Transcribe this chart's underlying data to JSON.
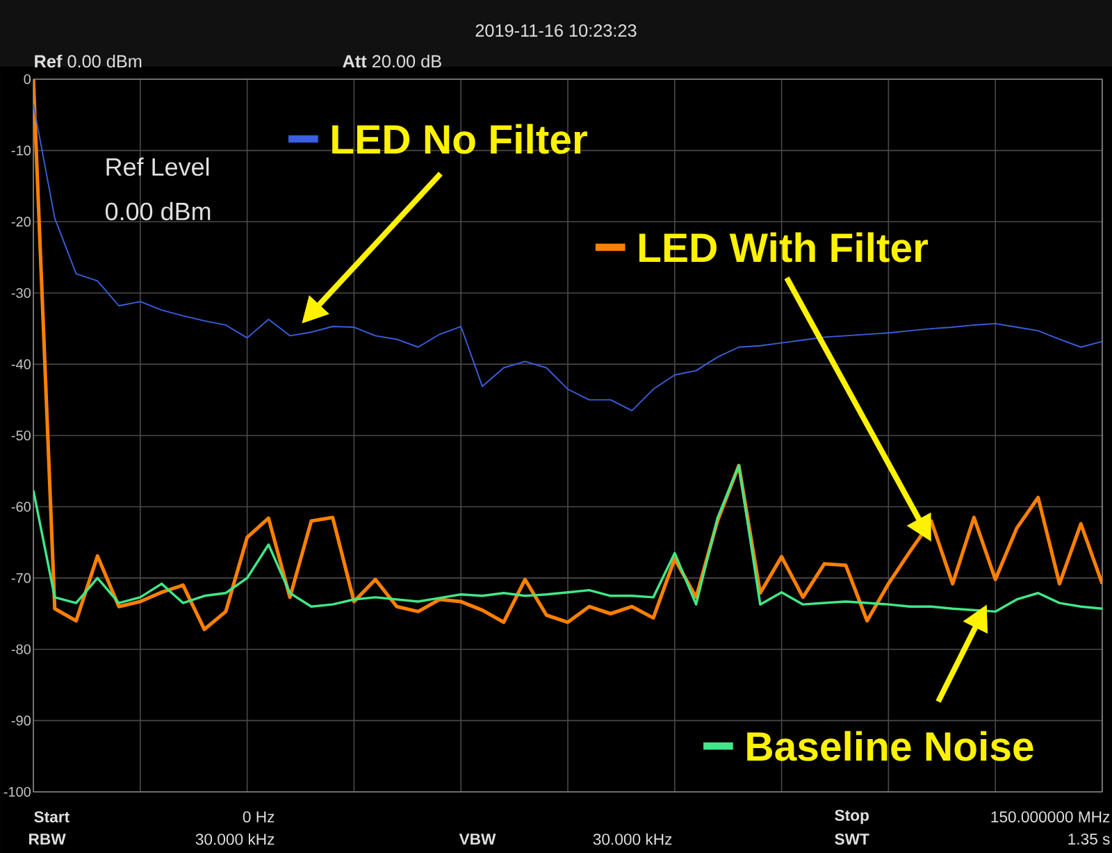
{
  "chart_data": {
    "type": "line",
    "ylim": [
      -100,
      0
    ],
    "categories": [
      null,
      null,
      null,
      null,
      null,
      null,
      null,
      null,
      null,
      null,
      null,
      null,
      null,
      null,
      null,
      null,
      null,
      null,
      null,
      null,
      null,
      null,
      null,
      null,
      null,
      null,
      null,
      null,
      null,
      null,
      null,
      null,
      null,
      null,
      null,
      null,
      null,
      null,
      null,
      null,
      null,
      null,
      null,
      null,
      null,
      null,
      null,
      null,
      null,
      null,
      null
    ],
    "yticks": [
      0,
      -10,
      -20,
      -30,
      -40,
      -50,
      -60,
      -70,
      -80,
      -90,
      -100
    ],
    "tick_labels": "y",
    "grid": true,
    "legend": "right",
    "annotations": [
      "2019-11-16   10:23:23",
      "**Ref**  0.00 dBm",
      "**Att**  20.00 dB",
      "Ref Level",
      "0.00 dBm",
      "Start",
      "0 Hz",
      "Stop",
      "150.000000 MHz",
      "RBW",
      "30.000 kHz",
      "VBW",
      "30.000 kHz",
      "SWT",
      "1.35 s"
    ],
    "series": [
      {
        "name": "LED With Filter",
        "color": "#ff8000",
        "values": [
          0,
          -74.3,
          -76,
          -66.9,
          -74,
          -73.3,
          -72,
          -71,
          -77.2,
          -74.7,
          -64.3,
          -61.6,
          -72.7,
          -62,
          -61.5,
          -73.3,
          -70.2,
          -74,
          -74.7,
          -73,
          -73.3,
          -74.5,
          -76.2,
          -70.2,
          -75.2,
          -76.2,
          -74,
          -75,
          -74,
          -75.6,
          -67.3,
          -72.7,
          -62,
          -54.2,
          -72.1,
          -67,
          -72.7,
          -68,
          -68.2,
          -76,
          -70.8,
          -66.3,
          -62,
          -70.8,
          -61.5,
          -70.2,
          -63,
          -58.7,
          -70.8,
          -62.4,
          -70.8
        ]
      },
      {
        "name": "Baseline Noise",
        "color": "#40e888",
        "values": [
          -57.7,
          -72.7,
          -73.5,
          -70,
          -73.5,
          -72.7,
          -70.8,
          -73.5,
          -72.5,
          -72.1,
          -70,
          -65.3,
          -72.1,
          -74,
          -73.7,
          -73,
          -72.7,
          -73,
          -73.3,
          -72.8,
          -72.3,
          -72.5,
          -72.1,
          -72.5,
          -72.3,
          -72,
          -71.7,
          -72.5,
          -72.5,
          -72.7,
          -66.5,
          -73.7,
          -61.6,
          -54.2,
          -73.7,
          -72,
          -73.7,
          -73.5,
          -73.3,
          -73.5,
          -73.7,
          -74,
          -74,
          -74.3,
          -74.5,
          -74.7,
          -73,
          -72.1,
          -73.5,
          -74,
          -74.3
        ]
      },
      {
        "name": "LED No Filter",
        "color": "#3a5fe0",
        "values": [
          -3.5,
          -19.5,
          -27.3,
          -28.3,
          -31.8,
          -31.2,
          -32.4,
          -33.2,
          -33.9,
          -34.5,
          -36.3,
          -33.7,
          -36,
          -35.5,
          -34.7,
          -34.8,
          -36,
          -36.5,
          -37.6,
          -35.8,
          -34.7,
          -43.1,
          -40.5,
          -39.6,
          -40.5,
          -43.5,
          -45,
          -45,
          -46.5,
          -43.5,
          -41.5,
          -40.9,
          -39,
          -37.6,
          -37.4,
          -37,
          -36.6,
          -36.2,
          -36,
          -35.8,
          -35.6,
          -35.3,
          -35,
          -34.8,
          -34.5,
          -34.3,
          -34.8,
          -35.3,
          -36.5,
          -37.6,
          -36.8
        ]
      }
    ]
  }
}
